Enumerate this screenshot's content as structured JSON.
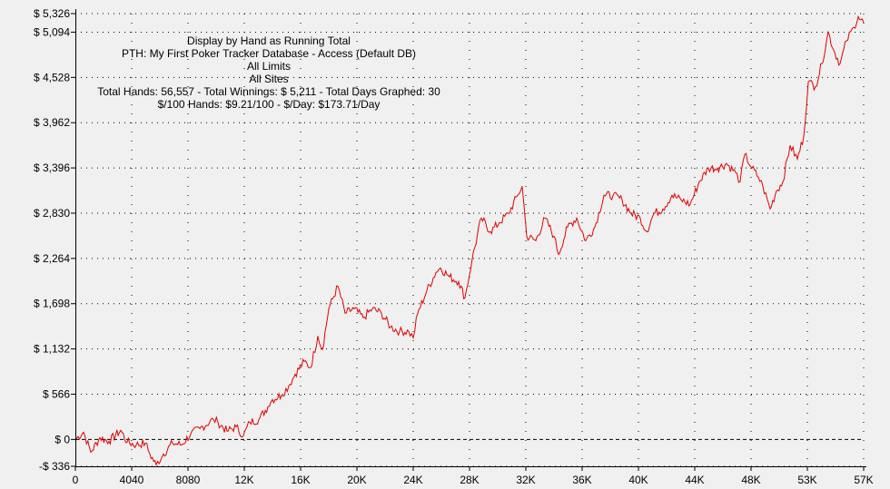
{
  "chart_data": {
    "type": "line",
    "title_lines": [
      "Display by Hand as Running Total",
      "PTH: My First Poker Tracker Database - Access (Default DB)",
      "All Limits",
      "All Sites",
      "Total Hands: 56,557 - Total Winnings: $ 5,211 - Total Days Graphed: 30",
      "$/100 Hands: $9.21/100 - $/Day: $173.71/Day"
    ],
    "xlabel": "",
    "ylabel": "",
    "xlim": [
      0,
      56557
    ],
    "ylim": [
      -336,
      5326
    ],
    "x_ticks": [
      0,
      4040,
      8080,
      12120,
      16160,
      20200,
      24240,
      28280,
      32320,
      36360,
      40400,
      44440,
      48480,
      52520,
      56560
    ],
    "x_tick_labels": [
      "0",
      "4040",
      "8080",
      "12K",
      "16K",
      "20K",
      "24K",
      "28K",
      "32K",
      "36K",
      "40K",
      "44K",
      "48K",
      "53K",
      "57K"
    ],
    "y_ticks": [
      -336,
      0,
      566,
      1132,
      1698,
      2264,
      2830,
      3396,
      3962,
      4528,
      5094,
      5326
    ],
    "y_tick_labels": [
      "-$ 336",
      "$ 0",
      "$ 566",
      "$ 1,132",
      "$ 1,698",
      "$ 2,264",
      "$ 2,830",
      "$ 3,396",
      "$ 3,962",
      "$ 4,528",
      "$ 5,094",
      "$ 5,326"
    ],
    "grid": true,
    "line_color": "#e00000",
    "series": [
      {
        "x": [
          0,
          586,
          1108,
          1759,
          2411,
          3258,
          3714,
          4366,
          5017,
          5343,
          5799,
          6321,
          6972,
          7624,
          8275,
          8927,
          9904,
          10230,
          10882,
          11533,
          12055,
          12511,
          13162,
          13814,
          14140,
          14791,
          15313,
          15769,
          16420,
          16876,
          17398,
          17724,
          18180,
          18831,
          19353,
          20004,
          20656,
          21307,
          21959,
          22611,
          23262,
          23914,
          24239,
          24565,
          25217,
          25868,
          26194,
          26846,
          27497,
          27953,
          28475,
          29127,
          29778,
          30430,
          31081,
          31733,
          32059,
          32385,
          33036,
          33688,
          34339,
          34665,
          35317,
          35968,
          36620,
          37271,
          37923,
          38575,
          39226,
          39878,
          40529,
          40985,
          41507,
          42159,
          42810,
          43462,
          44113,
          44765,
          45417,
          46068,
          46720,
          47371,
          47697,
          48023,
          48544,
          49000,
          49326,
          49848,
          50304,
          50760,
          51281,
          51803,
          52259,
          52585,
          53106,
          53562,
          54018,
          54409,
          54865,
          55321,
          55842,
          56168,
          56557
        ],
        "y": [
          0,
          91,
          -159,
          23,
          -23,
          114,
          -34,
          -68,
          -45,
          -182,
          -318,
          -182,
          -45,
          -68,
          68,
          136,
          250,
          216,
          102,
          159,
          45,
          216,
          250,
          409,
          499,
          556,
          670,
          817,
          976,
          897,
          1294,
          1124,
          1634,
          1918,
          1578,
          1634,
          1521,
          1634,
          1578,
          1407,
          1351,
          1351,
          1271,
          1578,
          1861,
          2088,
          2145,
          2032,
          1975,
          1771,
          2259,
          2769,
          2599,
          2713,
          2826,
          3053,
          3167,
          2542,
          2486,
          2769,
          2542,
          2315,
          2656,
          2769,
          2486,
          2656,
          3053,
          3053,
          2996,
          2826,
          2769,
          2599,
          2826,
          2883,
          3053,
          2996,
          2940,
          3223,
          3394,
          3394,
          3450,
          3337,
          3223,
          3564,
          3394,
          3280,
          3167,
          2883,
          3110,
          3223,
          3677,
          3507,
          3791,
          4472,
          4415,
          4699,
          5096,
          4869,
          4699,
          4983,
          5153,
          5289,
          5211
        ]
      }
    ]
  }
}
